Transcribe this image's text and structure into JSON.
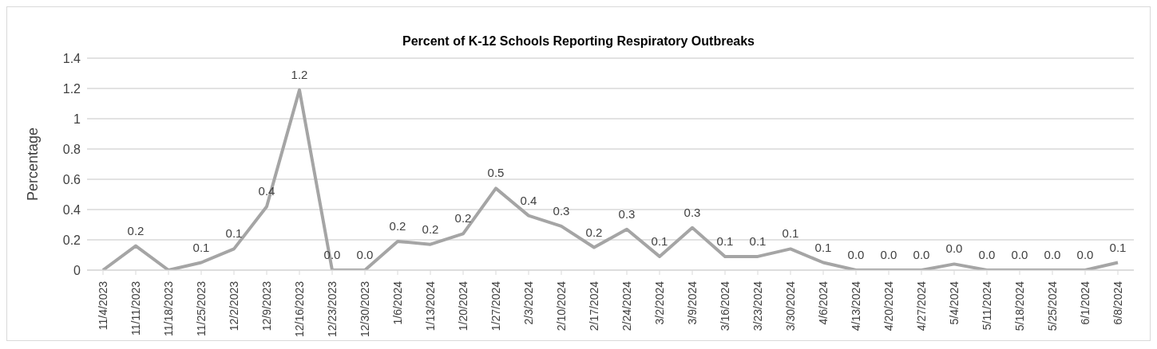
{
  "chart_data": {
    "type": "line",
    "title": "Percent of K-12 Schools Reporting Respiratory Outbreaks",
    "ylabel": "Percentage",
    "categories": [
      "11/4/2023",
      "11/11/2023",
      "11/18/2023",
      "11/25/2023",
      "12/2/2023",
      "12/9/2023",
      "12/16/2023",
      "12/23/2023",
      "12/30/2023",
      "1/6/2024",
      "1/13/2024",
      "1/20/2024",
      "1/27/2024",
      "2/3/2024",
      "2/10/2024",
      "2/17/2024",
      "2/24/2024",
      "3/2/2024",
      "3/9/2024",
      "3/16/2024",
      "3/23/2024",
      "3/30/2024",
      "4/6/2024",
      "4/13/2024",
      "4/20/2024",
      "4/27/2024",
      "5/4/2024",
      "5/11/2024",
      "5/18/2024",
      "5/25/2024",
      "6/1/2024",
      "6/8/2024"
    ],
    "series": [
      {
        "color": "#a5a5a5",
        "values": [
          0,
          0.16,
          0,
          0.05,
          0.14,
          0.42,
          1.19,
          0,
          0,
          0.19,
          0.17,
          0.24,
          0.54,
          0.36,
          0.29,
          0.15,
          0.27,
          0.09,
          0.28,
          0.09,
          0.09,
          0.14,
          0.05,
          0,
          0,
          0,
          0.04,
          0,
          0,
          0,
          0,
          0.05
        ],
        "value_labels": [
          null,
          "0.2",
          null,
          "0.1",
          "0.1",
          "0.4",
          "1.2",
          "0.0",
          "0.0",
          "0.2",
          "0.2",
          "0.2",
          "0.5",
          "0.4",
          "0.3",
          "0.2",
          "0.3",
          "0.1",
          "0.3",
          "0.1",
          "0.1",
          "0.1",
          "0.1",
          "0.0",
          "0.0",
          "0.0",
          "0.0",
          "0.0",
          "0.0",
          "0.0",
          "0.0",
          "0.1"
        ]
      }
    ],
    "ylim": [
      0,
      1.4
    ],
    "yticks": [
      0,
      0.2,
      0.4,
      0.6,
      0.8,
      1,
      1.2,
      1.4
    ],
    "grid": "y",
    "marker": "none",
    "line_style": "solid",
    "legend": false
  }
}
